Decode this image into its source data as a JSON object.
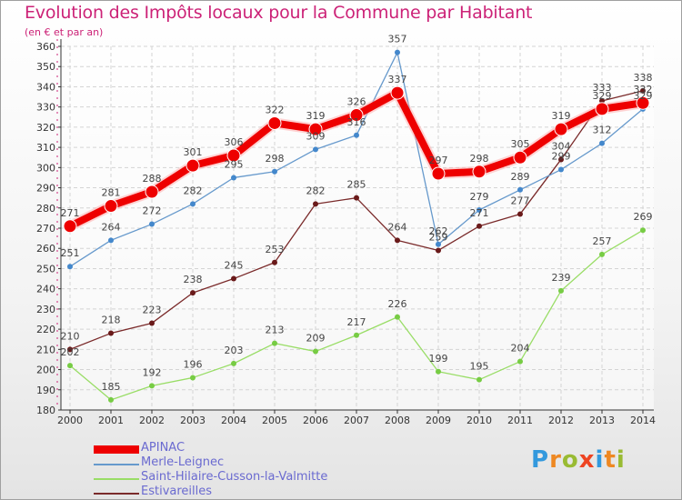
{
  "title": "Evolution des Impôts locaux pour la Commune par Habitant",
  "subtitle": "(en € et par an)",
  "logo": {
    "text": "Proxiti",
    "letters": [
      {
        "ch": "P",
        "color": "#3399dd"
      },
      {
        "ch": "r",
        "color": "#ee8822"
      },
      {
        "ch": "o",
        "color": "#99bb33"
      },
      {
        "ch": "x",
        "color": "#ee4422"
      },
      {
        "ch": "i",
        "color": "#3399dd"
      },
      {
        "ch": "t",
        "color": "#ee8822"
      },
      {
        "ch": "i",
        "color": "#99bb33"
      }
    ]
  },
  "chart_data": {
    "type": "line",
    "title": "Evolution des Impôts locaux pour la Commune par Habitant",
    "subtitle": "(en € et par an)",
    "x": [
      2000,
      2001,
      2002,
      2003,
      2004,
      2005,
      2006,
      2007,
      2008,
      2009,
      2010,
      2011,
      2012,
      2013,
      2014
    ],
    "ylim": [
      180,
      360
    ],
    "yticks": [
      180,
      190,
      200,
      210,
      220,
      230,
      240,
      250,
      260,
      270,
      280,
      290,
      300,
      310,
      320,
      330,
      340,
      350,
      360
    ],
    "grid": true,
    "legend_position": "bottom-left",
    "series": [
      {
        "name": "APINAC",
        "color": "#ee0000",
        "marker": "#ee0000",
        "values": [
          271,
          281,
          288,
          301,
          306,
          322,
          319,
          326,
          337,
          297,
          298,
          305,
          319,
          329,
          332
        ],
        "labels": [
          "271",
          "281",
          "288",
          "301",
          "306",
          "322",
          "319",
          "326",
          "337",
          "297",
          "298",
          "305",
          "319",
          "329",
          "332"
        ]
      },
      {
        "name": "Merle-Leignec",
        "color": "#6699cc",
        "marker": "#4488cc",
        "values": [
          251,
          264,
          272,
          282,
          295,
          298,
          309,
          316,
          357,
          262,
          279,
          289,
          299,
          312,
          329
        ],
        "labels": [
          "251",
          "264",
          "272",
          "282",
          "295",
          "298",
          "309",
          "316",
          "357",
          "262",
          "279",
          "289",
          "299",
          "312",
          "329"
        ]
      },
      {
        "name": "Saint-Hilaire-Cusson-la-Valmitte",
        "color": "#99dd66",
        "marker": "#77cc44",
        "values": [
          202,
          185,
          192,
          196,
          203,
          213,
          209,
          217,
          226,
          199,
          195,
          204,
          239,
          257,
          269
        ],
        "labels": [
          "202",
          "185",
          "192",
          "196",
          "203",
          "213",
          "209",
          "217",
          "226",
          "199",
          "195",
          "204",
          "239",
          "257",
          "269"
        ]
      },
      {
        "name": "Estivareilles",
        "color": "#7a2a2a",
        "marker": "#6a1a1a",
        "values": [
          210,
          218,
          223,
          238,
          245,
          253,
          282,
          285,
          264,
          259,
          271,
          277,
          304,
          333,
          338
        ],
        "labels": [
          "210",
          "218",
          "223",
          "238",
          "245",
          "253",
          "282",
          "285",
          "264",
          "259",
          "271",
          "277",
          "304",
          "333",
          "338"
        ]
      }
    ]
  }
}
